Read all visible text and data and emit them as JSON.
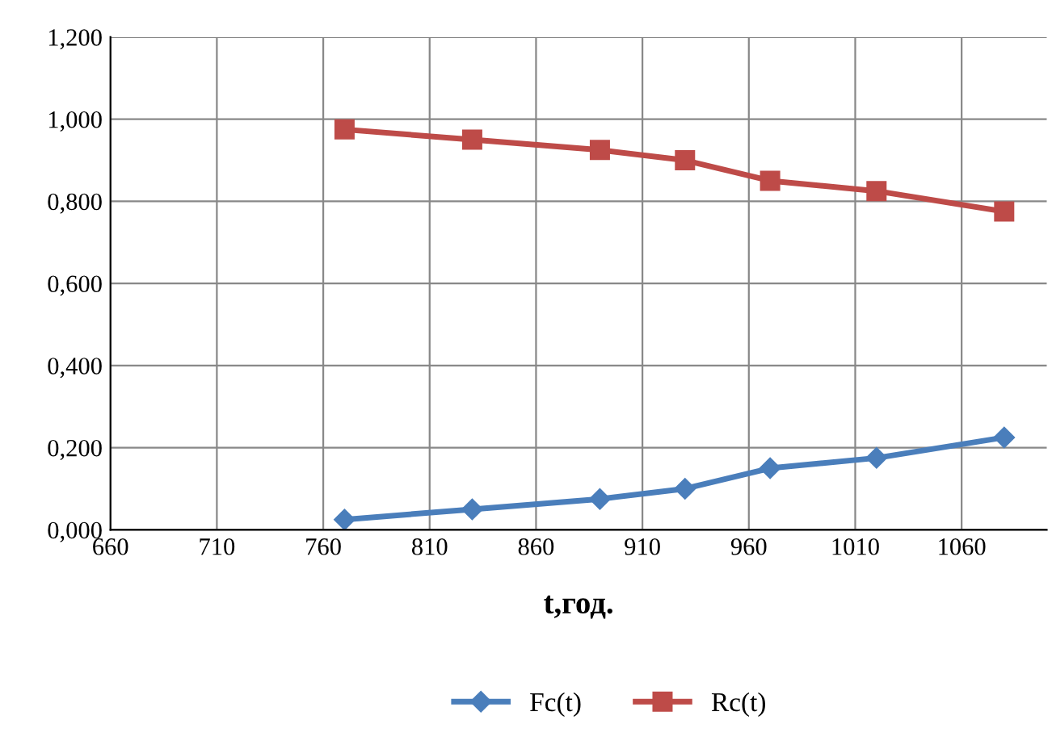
{
  "chart_data": {
    "type": "line",
    "xlabel": "t,год.",
    "x": [
      770,
      830,
      890,
      930,
      970,
      1020,
      1080
    ],
    "series": [
      {
        "name": "Fc(t)",
        "color": "#4a7ebb",
        "marker": "diamond",
        "values": [
          0.025,
          0.05,
          0.075,
          0.1,
          0.15,
          0.175,
          0.225
        ]
      },
      {
        "name": "Rc(t)",
        "color": "#be4b48",
        "marker": "square",
        "values": [
          0.975,
          0.95,
          0.925,
          0.9,
          0.85,
          0.825,
          0.775
        ]
      }
    ],
    "xlim": [
      660,
      1100
    ],
    "xticks": [
      660,
      710,
      760,
      810,
      860,
      910,
      960,
      1010,
      1060
    ],
    "ylim": [
      0,
      1.2
    ],
    "yticks": [
      {
        "value": 0,
        "label": "0,000"
      },
      {
        "value": 0.2,
        "label": "0,200"
      },
      {
        "value": 0.4,
        "label": "0,400"
      },
      {
        "value": 0.6,
        "label": "0,600"
      },
      {
        "value": 0.8,
        "label": "0,800"
      },
      {
        "value": 1.0,
        "label": "1,000"
      },
      {
        "value": 1.2,
        "label": "1,200"
      }
    ],
    "grid": true,
    "legend": "bottom"
  }
}
